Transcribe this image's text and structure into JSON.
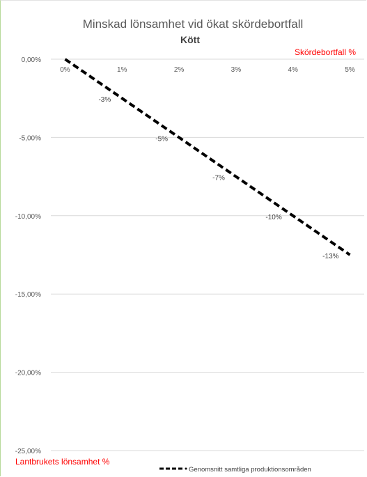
{
  "chart_data": {
    "type": "line",
    "title": "Minskad lönsamhet vid ökat skördebortfall",
    "subtitle": "Kött",
    "xlabel": "Skördebortfall %",
    "ylabel": "Lantbrukets lönsamhet %",
    "x": [
      0,
      1,
      2,
      3,
      4,
      5
    ],
    "x_tick_labels": [
      "0%",
      "1%",
      "2%",
      "3%",
      "4%",
      "5%"
    ],
    "y_tick_values": [
      0,
      -5,
      -10,
      -15,
      -20,
      -25
    ],
    "y_tick_labels": [
      "0,00%",
      "-5,00%",
      "-10,00%",
      "-15,00%",
      "-20,00%",
      "-25,00%"
    ],
    "ylim": [
      -25,
      0
    ],
    "xlim": [
      -0.25,
      5.25
    ],
    "x_axis_position": "top",
    "grid": true,
    "legend_position": "bottom-right",
    "series": [
      {
        "name": "Genomsnitt samtliga produktionsområden",
        "color": "#000000",
        "style": "dashed",
        "points": [
          {
            "x": 0,
            "y": 0
          },
          {
            "x": 1,
            "y": -2.5
          },
          {
            "x": 2,
            "y": -5
          },
          {
            "x": 3,
            "y": -7.5
          },
          {
            "x": 4,
            "y": -10
          },
          {
            "x": 5,
            "y": -12.5
          }
        ]
      }
    ],
    "data_labels": [
      {
        "x": 1,
        "y": -2.5,
        "text": "-3%"
      },
      {
        "x": 2,
        "y": -5,
        "text": "-5%"
      },
      {
        "x": 3,
        "y": -7.5,
        "text": "-7%"
      },
      {
        "x": 4,
        "y": -10,
        "text": "-10%"
      },
      {
        "x": 5,
        "y": -12.5,
        "text": "-13%"
      }
    ],
    "colors": {
      "title": "#595959",
      "subtitle": "#404040",
      "axis_title": "#ff0000",
      "tick": "#595959",
      "grid": "#d9d9d9"
    }
  }
}
